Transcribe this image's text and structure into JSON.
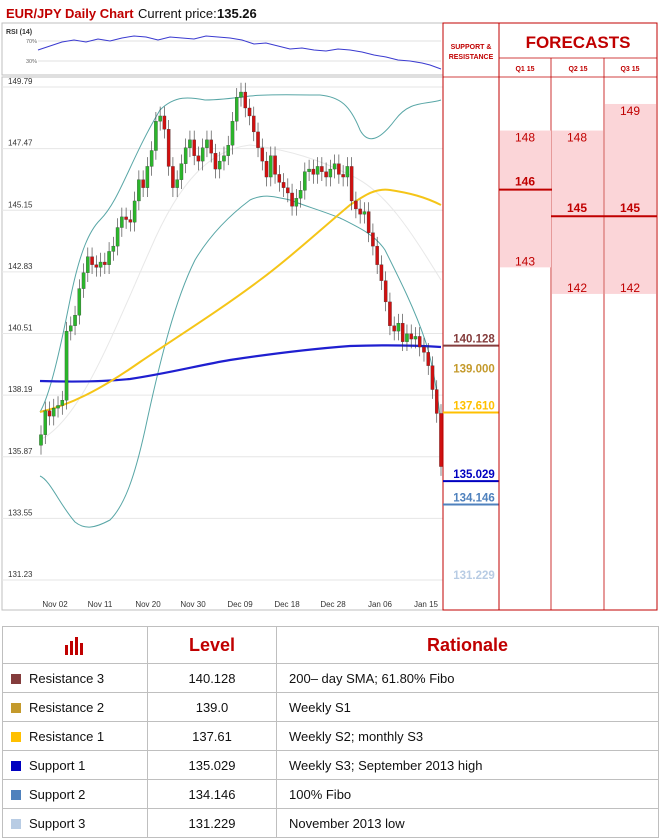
{
  "header": {
    "title": "EUR/JPY Daily Chart",
    "price_label": "Current price:",
    "price_value": "135.26"
  },
  "rsi": {
    "label": "RSI (14)",
    "tick_top": "70%",
    "tick_bottom": "30%"
  },
  "panel": {
    "support_resistance_title_line1": "SUPPORT &",
    "support_resistance_title_line2": "RESISTANCE",
    "forecasts_title": "FORECASTS",
    "quarters": [
      "Q1 15",
      "Q2 15",
      "Q3 15"
    ]
  },
  "colors": {
    "accent": "#c00000",
    "forecast_fill": "#fbd5d8",
    "sma200": "#1f1fd0",
    "sma_mid": "#f5c518",
    "bollinger": "#58a6a6",
    "bull": "#2bb52b",
    "bear": "#d01010",
    "resistance3": "#843c3c",
    "resistance2": "#c49a2c",
    "resistance1": "#ffc000",
    "support1": "#0000c0",
    "support2": "#4f81bd",
    "support3": "#b8cce4"
  },
  "chart_data": {
    "type": "candlestick",
    "title": "EUR/JPY Daily Chart",
    "y_ticks": [
      149.79,
      147.47,
      145.15,
      142.83,
      140.51,
      138.19,
      135.87,
      133.55,
      131.23
    ],
    "ylim": [
      130.9,
      150.2
    ],
    "x_ticks": [
      "Nov 02",
      "Nov 11",
      "Nov 20",
      "Nov 30",
      "Dec 09",
      "Dec 18",
      "Dec 28",
      "Jan 06",
      "Jan 15"
    ],
    "levels": [
      {
        "label": "140.128",
        "value": 140.128,
        "color": "#843c3c",
        "style": "solid"
      },
      {
        "label": "139.000",
        "value": 139.0,
        "color": "#c49a2c",
        "style": "none"
      },
      {
        "label": "137.610",
        "value": 137.61,
        "color": "#ffc000",
        "style": "solid"
      },
      {
        "label": "135.029",
        "value": 135.029,
        "color": "#0000c0",
        "style": "solid"
      },
      {
        "label": "134.146",
        "value": 134.146,
        "color": "#4f81bd",
        "style": "solid"
      },
      {
        "label": "131.229",
        "value": 131.229,
        "color": "#b8cce4",
        "style": "none"
      }
    ],
    "candles_close": [
      136.7,
      137.6,
      137.4,
      137.7,
      137.8,
      138.0,
      140.6,
      140.8,
      141.2,
      142.2,
      142.8,
      143.4,
      143.1,
      143.0,
      143.2,
      143.1,
      143.6,
      143.8,
      144.5,
      144.9,
      144.8,
      144.7,
      145.5,
      146.3,
      146.0,
      146.8,
      147.4,
      148.5,
      148.7,
      148.2,
      146.8,
      146.0,
      146.3,
      146.9,
      147.5,
      147.8,
      147.2,
      147.0,
      147.5,
      147.8,
      147.3,
      146.7,
      147.0,
      147.2,
      147.6,
      148.5,
      149.4,
      149.6,
      149.0,
      148.7,
      148.1,
      147.5,
      147.0,
      146.4,
      147.2,
      146.5,
      146.2,
      146.0,
      145.8,
      145.3,
      145.6,
      145.9,
      146.6,
      146.7,
      146.5,
      146.8,
      146.6,
      146.4,
      146.7,
      146.9,
      146.5,
      146.4,
      146.8,
      145.5,
      145.2,
      145.0,
      145.1,
      144.3,
      143.8,
      143.1,
      142.5,
      141.7,
      140.8,
      140.6,
      140.9,
      140.2,
      140.5,
      140.3,
      140.4,
      140.0,
      139.8,
      139.3,
      138.4,
      137.5,
      135.5
    ],
    "candles_open": [
      136.3,
      136.7,
      137.6,
      137.4,
      137.7,
      137.8,
      138.0,
      140.6,
      140.8,
      141.2,
      142.2,
      142.8,
      143.4,
      143.1,
      143.0,
      143.2,
      143.1,
      143.6,
      143.8,
      144.5,
      144.9,
      144.8,
      144.7,
      145.5,
      146.3,
      146.0,
      146.8,
      147.4,
      148.5,
      148.7,
      148.2,
      146.8,
      146.0,
      146.3,
      146.9,
      147.5,
      147.8,
      147.2,
      147.0,
      147.5,
      147.8,
      147.3,
      146.7,
      147.0,
      147.2,
      147.6,
      148.5,
      149.4,
      149.6,
      149.0,
      148.7,
      148.1,
      147.5,
      147.0,
      146.4,
      147.2,
      146.5,
      146.2,
      146.0,
      145.8,
      145.3,
      145.6,
      145.9,
      146.6,
      146.7,
      146.5,
      146.8,
      146.6,
      146.4,
      146.7,
      146.9,
      146.5,
      146.4,
      146.8,
      145.5,
      145.2,
      145.0,
      145.1,
      144.3,
      143.8,
      143.1,
      142.5,
      141.7,
      140.8,
      140.6,
      140.9,
      140.2,
      140.5,
      140.3,
      140.4,
      140.0,
      139.8,
      139.3,
      138.4,
      137.5
    ],
    "forecasts": {
      "Q1 15": [
        148,
        146,
        143
      ],
      "Q2 15": [
        148,
        145,
        142
      ],
      "Q3 15": [
        149,
        145,
        142
      ]
    }
  },
  "table": {
    "headers": [
      "",
      "Level",
      "Rationale"
    ],
    "rows": [
      {
        "name": "Resistance 3",
        "level": "140.128",
        "rationale": "200– day SMA; 61.80% Fibo",
        "color": "#843c3c"
      },
      {
        "name": "Resistance 2",
        "level": "139.0",
        "rationale": "Weekly S1",
        "color": "#c49a2c"
      },
      {
        "name": "Resistance 1",
        "level": "137.61",
        "rationale": "Weekly S2; monthly S3",
        "color": "#ffc000"
      },
      {
        "name": "Support 1",
        "level": "135.029",
        "rationale": "Weekly S3; September 2013 high",
        "color": "#0000c0"
      },
      {
        "name": "Support 2",
        "level": "134.146",
        "rationale": "100% Fibo",
        "color": "#4f81bd"
      },
      {
        "name": "Support 3",
        "level": "131.229",
        "rationale": "November 2013 low",
        "color": "#b8cce4"
      }
    ]
  }
}
